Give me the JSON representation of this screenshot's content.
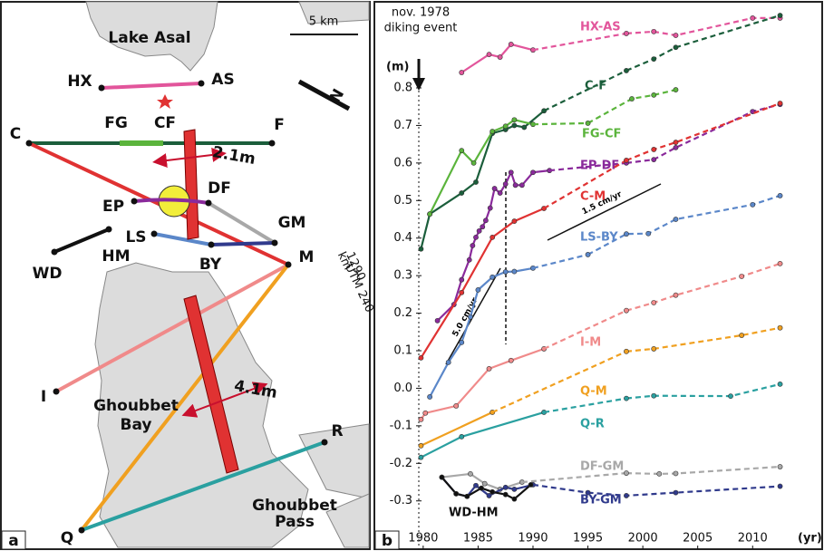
{
  "map": {
    "labels": [
      "Lake Asal",
      "5 km",
      "HX",
      "AS",
      "C",
      "FG",
      "CF",
      "F",
      "EP",
      "DF",
      "LS",
      "GM",
      "HM",
      "WD",
      "BY",
      "M",
      "I",
      "Ghoubbet",
      "Bay",
      "R",
      "Q",
      "Ghoubbet",
      "Pass",
      "2.1m",
      "4.1m",
      "km",
      "1290",
      "UTM 240",
      "N",
      "a"
    ]
  },
  "chart_data": {
    "type": "line",
    "panel_label": "b",
    "y_label": "(m)",
    "x_label": "(yr)",
    "annotations": {
      "event": [
        "nov. 1978",
        "diking event"
      ],
      "rate_fast": "5.0 cm/yr",
      "rate_slow": "1.5 cm/yr"
    },
    "xlim": [
      1979.6,
      2016.5
    ],
    "xticks": [
      1980,
      1985,
      1990,
      1995,
      2000,
      2005,
      2010
    ],
    "ylim": [
      -0.39,
      1.01
    ],
    "yticks": [
      -0.3,
      -0.2,
      -0.1,
      {
        "value": 0,
        "label": "0.0"
      },
      0.1,
      0.2,
      0.3,
      0.4,
      0.5,
      0.6,
      0.7,
      0.8
    ],
    "series": [
      {
        "name": "HX-AS",
        "color": "#e2559b",
        "pieces": [
          {
            "style": "solid",
            "x": [
              1983.5,
              1986,
              1987,
              1988,
              1990
            ],
            "values": [
              0.841,
              0.889,
              0.882,
              0.916,
              0.901
            ]
          },
          {
            "style": "dashed",
            "x": [
              1998.5,
              2001,
              2003,
              2010,
              2012.5
            ],
            "values": [
              0.945,
              0.95,
              0.94,
              0.986,
              0.986
            ]
          }
        ]
      },
      {
        "name": "C-F",
        "color": "#1b5e3b",
        "pieces": [
          {
            "style": "solid",
            "x": [
              1979.8,
              1980.6,
              1983.5,
              1984.8,
              1986.3,
              1987.5,
              1988.3,
              1989.2,
              1991
            ],
            "values": [
              0.371,
              0.464,
              0.52,
              0.549,
              0.679,
              0.689,
              0.7,
              0.695,
              0.739
            ]
          },
          {
            "style": "dashed",
            "x": [
              1998.5,
              2001,
              2003,
              2012.5
            ],
            "values": [
              0.846,
              0.877,
              0.908,
              0.993
            ]
          }
        ]
      },
      {
        "name": "FG-CF",
        "color": "#5bb43c",
        "pieces": [
          {
            "style": "solid",
            "x": [
              1980.6,
              1983.5,
              1984.6,
              1986.3,
              1987.5,
              1988.3,
              1990
            ],
            "values": [
              0.464,
              0.633,
              0.6,
              0.684,
              0.698,
              0.715,
              0.703
            ]
          },
          {
            "style": "dashed",
            "x": [
              1995,
              1999,
              2001,
              2003
            ],
            "values": [
              0.706,
              0.771,
              0.781,
              0.795
            ]
          }
        ]
      },
      {
        "name": "EP-DF",
        "color": "#8a2a9b",
        "pieces": [
          {
            "style": "solid",
            "x": [
              1981.3,
              1982.8,
              1983.5,
              1984.2,
              1984.5,
              1984.8,
              1985.1,
              1985.4,
              1985.7,
              1986.1,
              1986.5,
              1987,
              1987.5,
              1988,
              1988.4,
              1989,
              1990,
              1991.5
            ],
            "values": [
              0.18,
              0.223,
              0.289,
              0.342,
              0.38,
              0.402,
              0.419,
              0.43,
              0.447,
              0.48,
              0.532,
              0.52,
              0.544,
              0.575,
              0.541,
              0.541,
              0.575,
              0.58
            ]
          },
          {
            "style": "dashed",
            "x": [
              1998.5,
              2001,
              2003,
              2010,
              2012.5
            ],
            "values": [
              0.6,
              0.609,
              0.641,
              0.737,
              0.756
            ]
          }
        ]
      },
      {
        "name": "C-M",
        "color": "#e03232",
        "pieces": [
          {
            "style": "solid",
            "x": [
              1979.8,
              1983.5,
              1986.3,
              1988.3,
              1991
            ],
            "values": [
              0.081,
              0.255,
              0.402,
              0.445,
              0.479
            ]
          },
          {
            "style": "dashed",
            "x": [
              1998.5,
              2001,
              2003,
              2012.5
            ],
            "values": [
              0.607,
              0.636,
              0.655,
              0.759
            ]
          }
        ]
      },
      {
        "name": "LS-BY",
        "color": "#5b87c9",
        "pieces": [
          {
            "style": "solid",
            "x": [
              1980.6,
              1982.3,
              1983.5,
              1984.3,
              1985,
              1986.3,
              1987.5,
              1988.3,
              1990
            ],
            "values": [
              -0.023,
              0.069,
              0.122,
              0.19,
              0.262,
              0.296,
              0.31,
              0.311,
              0.32
            ]
          },
          {
            "style": "dashed",
            "x": [
              1995,
              1998.5,
              2000.5,
              2003,
              2010,
              2012.5
            ],
            "values": [
              0.356,
              0.411,
              0.412,
              0.45,
              0.489,
              0.513
            ]
          }
        ]
      },
      {
        "name": "I-M",
        "color": "#f08a8a",
        "pieces": [
          {
            "style": "solid",
            "x": [
              1979.8,
              1980.2,
              1983,
              1986,
              1988,
              1991
            ],
            "values": [
              -0.083,
              -0.066,
              -0.047,
              0.052,
              0.074,
              0.105
            ]
          },
          {
            "style": "dashed",
            "x": [
              1998.5,
              2001,
              2003,
              2009,
              2012.5
            ],
            "values": [
              0.207,
              0.228,
              0.248,
              0.298,
              0.332
            ]
          }
        ]
      },
      {
        "name": "Q-M",
        "color": "#f0a020",
        "pieces": [
          {
            "style": "solid",
            "x": [
              1979.8,
              1986.3
            ],
            "values": [
              -0.153,
              -0.064
            ]
          },
          {
            "style": "dashed",
            "x": [
              1998.5,
              2001,
              2009,
              2012.5
            ],
            "values": [
              0.098,
              0.105,
              0.141,
              0.161
            ]
          }
        ]
      },
      {
        "name": "Q-R",
        "color": "#2aa0a0",
        "pieces": [
          {
            "style": "solid",
            "x": [
              1979.8,
              1983.5,
              1991
            ],
            "values": [
              -0.184,
              -0.129,
              -0.064
            ]
          },
          {
            "style": "dashed",
            "x": [
              1998.5,
              2001,
              2008,
              2012.5
            ],
            "values": [
              -0.027,
              -0.02,
              -0.021,
              0.011
            ]
          }
        ]
      },
      {
        "name": "DF-GM",
        "color": "#a8a8a8",
        "pieces": [
          {
            "style": "solid",
            "x": [
              1981.7,
              1984.3,
              1985.6,
              1987,
              1989
            ],
            "values": [
              -0.237,
              -0.228,
              -0.254,
              -0.269,
              -0.25
            ]
          },
          {
            "style": "dashed",
            "x": [
              1998.5,
              2001.5,
              2003,
              2012.5
            ],
            "values": [
              -0.226,
              -0.228,
              -0.227,
              -0.209
            ]
          }
        ]
      },
      {
        "name": "BY-GM",
        "color": "#303a8c",
        "pieces": [
          {
            "style": "solid",
            "x": [
              1981.7,
              1983,
              1984,
              1984.8,
              1986,
              1987.5,
              1988.3,
              1990
            ],
            "values": [
              -0.237,
              -0.281,
              -0.288,
              -0.259,
              -0.286,
              -0.264,
              -0.269,
              -0.257
            ]
          },
          {
            "style": "dashed",
            "x": [
              1995,
              1998.5,
              2003,
              2012.5
            ],
            "values": [
              -0.278,
              -0.286,
              -0.278,
              -0.261
            ]
          }
        ]
      },
      {
        "name": "WD-HM",
        "color": "#111111",
        "pieces": [
          {
            "style": "solid",
            "x": [
              1981.7,
              1983,
              1984,
              1985.3,
              1986.3,
              1987.5,
              1988.3,
              1989.8
            ],
            "values": [
              -0.237,
              -0.281,
              -0.288,
              -0.266,
              -0.276,
              -0.283,
              -0.295,
              -0.257
            ]
          }
        ]
      }
    ]
  }
}
